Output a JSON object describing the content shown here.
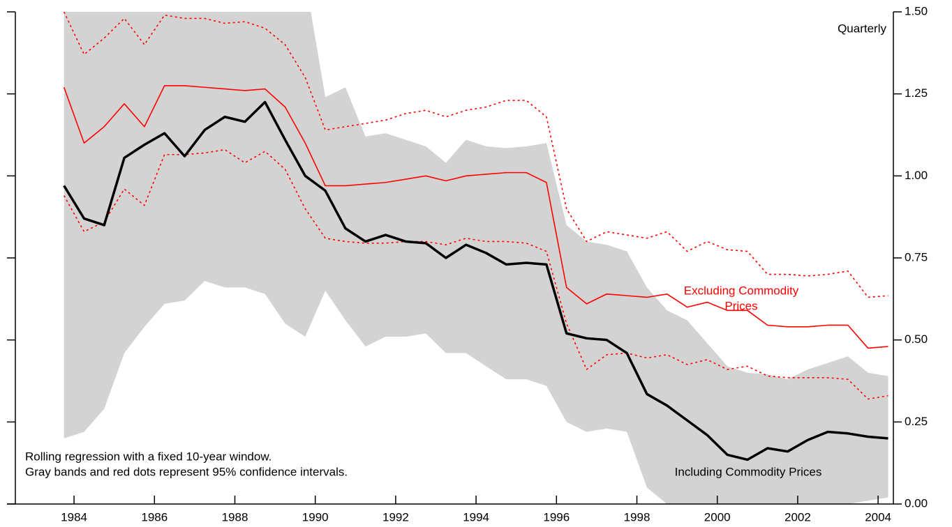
{
  "chart_data": {
    "type": "line",
    "x": [
      1983.75,
      1984.25,
      1984.75,
      1985.25,
      1985.75,
      1986.25,
      1986.75,
      1987.25,
      1987.75,
      1988.25,
      1988.75,
      1989.25,
      1989.75,
      1990.25,
      1990.75,
      1991.25,
      1991.75,
      1992.25,
      1992.75,
      1993.25,
      1993.75,
      1994.25,
      1994.75,
      1995.25,
      1995.75,
      1996.25,
      1996.75,
      1997.25,
      1997.75,
      1998.25,
      1998.75,
      1999.25,
      1999.75,
      2000.25,
      2000.75,
      2001.25,
      2001.75,
      2002.25,
      2002.75,
      2003.25,
      2003.75,
      2004.25
    ],
    "band": {
      "color": "#d3d3d3",
      "upper": [
        1.6,
        1.6,
        1.6,
        1.6,
        1.6,
        1.6,
        1.6,
        1.6,
        1.6,
        1.6,
        1.6,
        1.6,
        1.6,
        1.24,
        1.27,
        1.12,
        1.13,
        1.11,
        1.09,
        1.04,
        1.11,
        1.09,
        1.085,
        1.09,
        1.1,
        0.85,
        0.8,
        0.79,
        0.77,
        0.66,
        0.59,
        0.56,
        0.49,
        0.42,
        0.4,
        0.395,
        0.38,
        0.41,
        0.43,
        0.45,
        0.4,
        0.39
      ],
      "lower": [
        0.2,
        0.22,
        0.29,
        0.46,
        0.54,
        0.61,
        0.62,
        0.68,
        0.66,
        0.66,
        0.64,
        0.55,
        0.51,
        0.65,
        0.56,
        0.48,
        0.51,
        0.51,
        0.52,
        0.46,
        0.46,
        0.42,
        0.38,
        0.38,
        0.36,
        0.25,
        0.22,
        0.23,
        0.22,
        0.05,
        0,
        0,
        0,
        0,
        0,
        0,
        0,
        0,
        0,
        0,
        0.01,
        0.02
      ]
    },
    "series": [
      {
        "name": "Including Commodity Prices",
        "color": "#000000",
        "style": "solid",
        "width": 3.5,
        "values": [
          0.97,
          0.87,
          0.85,
          1.055,
          1.095,
          1.13,
          1.06,
          1.14,
          1.18,
          1.165,
          1.225,
          1.11,
          1.0,
          0.955,
          0.84,
          0.8,
          0.82,
          0.8,
          0.795,
          0.75,
          0.79,
          0.765,
          0.73,
          0.735,
          0.73,
          0.52,
          0.505,
          0.5,
          0.46,
          0.335,
          0.3,
          0.255,
          0.21,
          0.15,
          0.135,
          0.17,
          0.16,
          0.195,
          0.22,
          0.215,
          0.205,
          0.2
        ]
      },
      {
        "name": "Excluding Commodity Prices",
        "color": "#ff0000",
        "style": "solid",
        "width": 1.6,
        "values": [
          1.27,
          1.1,
          1.15,
          1.22,
          1.15,
          1.275,
          1.275,
          1.27,
          1.265,
          1.26,
          1.265,
          1.21,
          1.1,
          0.97,
          0.97,
          0.975,
          0.98,
          0.99,
          1.0,
          0.985,
          1.0,
          1.005,
          1.01,
          1.01,
          0.98,
          0.66,
          0.61,
          0.64,
          0.635,
          0.63,
          0.64,
          0.6,
          0.615,
          0.59,
          0.59,
          0.545,
          0.54,
          0.54,
          0.545,
          0.545,
          0.475,
          0.48
        ]
      },
      {
        "color": "#ff0000",
        "style": "dotted",
        "width": 1.6,
        "values": [
          1.5,
          1.37,
          1.42,
          1.48,
          1.4,
          1.49,
          1.48,
          1.48,
          1.465,
          1.47,
          1.45,
          1.4,
          1.3,
          1.14,
          1.15,
          1.16,
          1.17,
          1.19,
          1.2,
          1.18,
          1.2,
          1.21,
          1.23,
          1.23,
          1.18,
          0.9,
          0.8,
          0.83,
          0.82,
          0.81,
          0.83,
          0.77,
          0.8,
          0.775,
          0.77,
          0.7,
          0.7,
          0.695,
          0.7,
          0.71,
          0.63,
          0.635
        ]
      },
      {
        "color": "#ff0000",
        "style": "dotted",
        "width": 1.6,
        "values": [
          0.94,
          0.83,
          0.86,
          0.96,
          0.91,
          1.065,
          1.065,
          1.07,
          1.08,
          1.04,
          1.075,
          1.02,
          0.9,
          0.81,
          0.8,
          0.795,
          0.795,
          0.8,
          0.8,
          0.79,
          0.81,
          0.8,
          0.8,
          0.795,
          0.77,
          0.55,
          0.41,
          0.455,
          0.46,
          0.445,
          0.455,
          0.425,
          0.44,
          0.41,
          0.42,
          0.39,
          0.385,
          0.385,
          0.385,
          0.38,
          0.32,
          0.33
        ]
      }
    ],
    "labels": [
      {
        "lines": [
          "Including Commodity Prices"
        ],
        "color": "#000000"
      },
      {
        "lines": [
          "Excluding Commodity",
          "Prices"
        ],
        "color": "#ff0000"
      }
    ],
    "frequency": "Quarterly",
    "notes": [
      "Rolling regression with a fixed 10-year window.",
      "Gray bands and red dots represent 95% confidence intervals."
    ],
    "xlim": [
      1982.54,
      2004.38
    ],
    "xticks": [
      1984,
      1986,
      1988,
      1990,
      1992,
      1994,
      1996,
      1998,
      2000,
      2002,
      2004
    ],
    "ylim": [
      0,
      1.5
    ],
    "yticks": [
      {
        "value": 0,
        "label": "0.00"
      },
      {
        "value": 0.25,
        "label": "0.25"
      },
      {
        "value": 0.5,
        "label": "0.50"
      },
      {
        "value": 0.75,
        "label": "0.75"
      },
      {
        "value": 1,
        "label": "1.00"
      },
      {
        "value": 1.25,
        "label": "1.25"
      },
      {
        "value": 1.5,
        "label": "1.50"
      }
    ]
  }
}
